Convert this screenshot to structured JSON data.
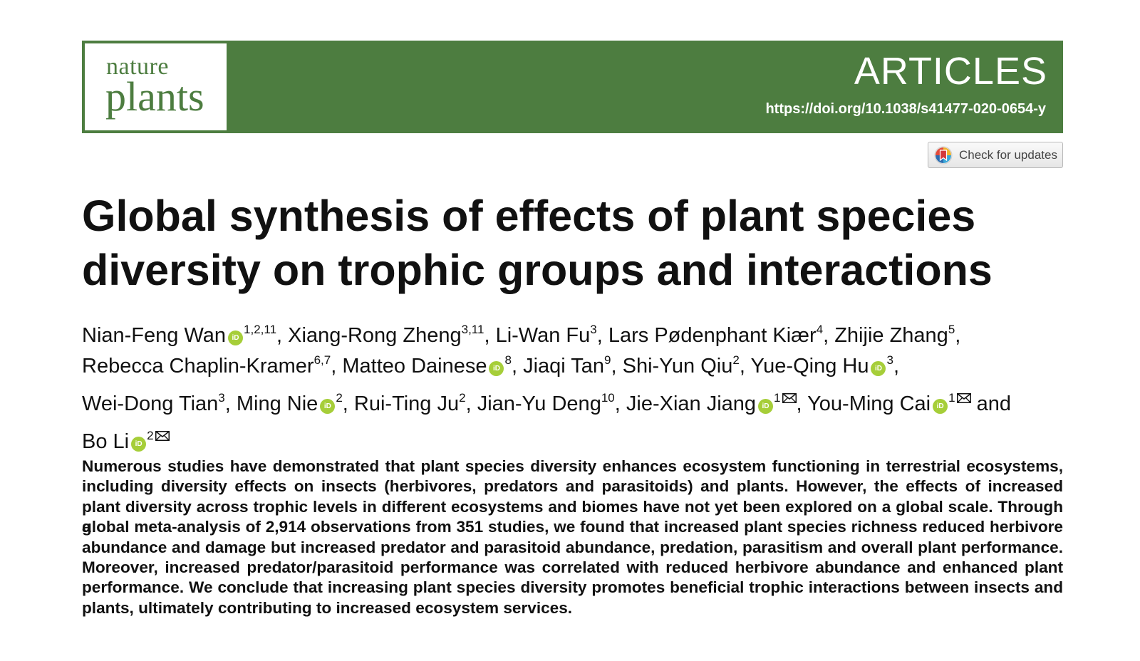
{
  "journal": {
    "name_top": "nature",
    "name_bottom": "plants",
    "section": "ARTICLES",
    "doi": "https://doi.org/10.1038/s41477-020-0654-y",
    "brand_color": "#4d7d40"
  },
  "check_updates": {
    "label": "Check for updates",
    "icon": "crossmark-icon"
  },
  "title": {
    "line1": "Global synthesis of effects of plant species",
    "line2": "diversity on trophic groups and interactions"
  },
  "authors": [
    {
      "name": "Nian-Feng Wan",
      "orcid": true,
      "aff": "1,2,11",
      "corresponding": false,
      "sep": ", "
    },
    {
      "name": "Xiang-Rong Zheng",
      "orcid": false,
      "aff": "3,11",
      "corresponding": false,
      "sep": ", "
    },
    {
      "name": "Li-Wan Fu",
      "orcid": false,
      "aff": "3",
      "corresponding": false,
      "sep": ", "
    },
    {
      "name": "Lars Pødenphant Kiær",
      "orcid": false,
      "aff": "4",
      "corresponding": false,
      "sep": ", "
    },
    {
      "name": "Zhijie Zhang",
      "orcid": false,
      "aff": "5",
      "corresponding": false,
      "sep": ","
    },
    {
      "name": "Rebecca Chaplin-Kramer",
      "orcid": false,
      "aff": "6,7",
      "corresponding": false,
      "sep": ", "
    },
    {
      "name": "Matteo Dainese",
      "orcid": true,
      "aff": "8",
      "corresponding": false,
      "sep": ", "
    },
    {
      "name": "Jiaqi Tan",
      "orcid": false,
      "aff": "9",
      "corresponding": false,
      "sep": ", "
    },
    {
      "name": "Shi-Yun Qiu",
      "orcid": false,
      "aff": "2",
      "corresponding": false,
      "sep": ", "
    },
    {
      "name": "Yue-Qing Hu",
      "orcid": true,
      "aff": "3",
      "corresponding": false,
      "sep": ","
    },
    {
      "name": "Wei-Dong Tian",
      "orcid": false,
      "aff": "3",
      "corresponding": false,
      "sep": ", "
    },
    {
      "name": "Ming Nie",
      "orcid": true,
      "aff": "2",
      "corresponding": false,
      "sep": ", "
    },
    {
      "name": "Rui-Ting Ju",
      "orcid": false,
      "aff": "2",
      "corresponding": false,
      "sep": ", "
    },
    {
      "name": "Jian-Yu Deng",
      "orcid": false,
      "aff": "10",
      "corresponding": false,
      "sep": ", "
    },
    {
      "name": "Jie-Xian Jiang",
      "orcid": true,
      "aff": "1",
      "corresponding": true,
      "sep": ", "
    },
    {
      "name": "You-Ming Cai",
      "orcid": true,
      "aff": "1",
      "corresponding": true,
      "sep": " and"
    },
    {
      "name": "Bo Li",
      "orcid": true,
      "aff": "2",
      "corresponding": true,
      "sep": ""
    }
  ],
  "author_lines": [
    [
      0,
      1,
      2,
      3,
      4
    ],
    [
      5,
      6,
      7,
      8,
      9
    ],
    [
      10,
      11,
      12,
      13,
      14,
      15
    ],
    [
      16
    ]
  ],
  "abstract_lines": [
    "Numerous studies have demonstrated that plant species diversity enhances ecosystem functioning in terrestrial ecosystems,",
    "including diversity effects on insects (herbivores, predators and parasitoids) and plants. However, the effects of increased",
    "plant diversity across trophic levels in different ecosystems and biomes have not yet been explored on a global scale. Through a",
    "global meta-analysis of 2,914 observations from 351 studies, we found that increased plant species richness reduced herbivore",
    "abundance and damage but increased predator and parasitoid abundance, predation, parasitism and overall plant performance.",
    "Moreover, increased predator/parasitoid performance was correlated with reduced herbivore abundance and enhanced plant",
    "performance. We conclude that increasing plant species diversity promotes beneficial trophic interactions between insects and",
    "plants, ultimately contributing to increased ecosystem services."
  ],
  "icons": {
    "orcid": "orcid-icon",
    "orcid_text": "iD",
    "mail": "mail-icon",
    "orcid_color": "#a6ce39"
  }
}
